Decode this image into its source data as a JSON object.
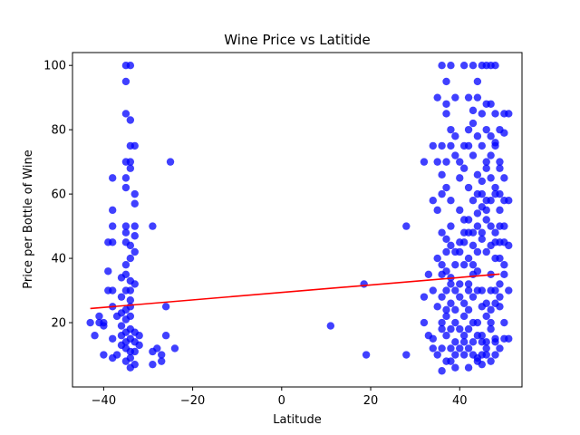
{
  "chart_data": {
    "type": "scatter",
    "title": "Wine Price vs Latitide",
    "xlabel": "Latitude",
    "ylabel": "Price per Bottle of Wine",
    "xlim": [
      -47,
      54
    ],
    "ylim": [
      0,
      104
    ],
    "xticks": [
      -40,
      -20,
      0,
      20,
      40
    ],
    "yticks": [
      20,
      40,
      60,
      80,
      100
    ],
    "grid": false,
    "colors": {
      "points": "#0000ff",
      "regression": "#ff0000"
    },
    "series": [
      {
        "type": "scatter",
        "points": [
          [
            -34,
            100
          ],
          [
            -35,
            100
          ],
          [
            -35,
            95
          ],
          [
            -35,
            85
          ],
          [
            -34,
            83
          ],
          [
            -34,
            75
          ],
          [
            -33,
            75
          ],
          [
            -34,
            70
          ],
          [
            -35,
            70
          ],
          [
            -34,
            68
          ],
          [
            -35,
            65
          ],
          [
            -38,
            65
          ],
          [
            -35,
            62
          ],
          [
            -33,
            60
          ],
          [
            -33,
            57
          ],
          [
            -38,
            55
          ],
          [
            -35,
            50
          ],
          [
            -33,
            50
          ],
          [
            -38,
            50
          ],
          [
            -35,
            48
          ],
          [
            -33,
            47
          ],
          [
            -39,
            45
          ],
          [
            -38,
            45
          ],
          [
            -35,
            45
          ],
          [
            -34,
            44
          ],
          [
            -33,
            42
          ],
          [
            -34,
            40
          ],
          [
            -35,
            38
          ],
          [
            -39,
            36
          ],
          [
            -35,
            35
          ],
          [
            -36,
            34
          ],
          [
            -34,
            33
          ],
          [
            -33,
            32
          ],
          [
            -34,
            30
          ],
          [
            -35,
            30
          ],
          [
            -39,
            30
          ],
          [
            -38,
            30
          ],
          [
            -36,
            28
          ],
          [
            -34,
            27
          ],
          [
            -38,
            25
          ],
          [
            -34,
            25
          ],
          [
            -35,
            24
          ],
          [
            -36,
            23
          ],
          [
            -37,
            22
          ],
          [
            -34,
            22
          ],
          [
            -35,
            21
          ],
          [
            -40,
            20
          ],
          [
            -43,
            20
          ],
          [
            -41,
            20
          ],
          [
            -40,
            19
          ],
          [
            -36,
            19
          ],
          [
            -34,
            18
          ],
          [
            -35,
            17
          ],
          [
            -33,
            17
          ],
          [
            -36,
            16
          ],
          [
            -32,
            16
          ],
          [
            -34,
            15
          ],
          [
            -38,
            15
          ],
          [
            -35,
            14
          ],
          [
            -33,
            14
          ],
          [
            -36,
            13
          ],
          [
            -32,
            13
          ],
          [
            -35,
            12
          ],
          [
            -34,
            11
          ],
          [
            -33,
            11
          ],
          [
            -37,
            10
          ],
          [
            -40,
            10
          ],
          [
            -34,
            9
          ],
          [
            -38,
            9
          ],
          [
            -35,
            8
          ],
          [
            -33,
            7
          ],
          [
            -34,
            6
          ],
          [
            -29,
            50
          ],
          [
            -25,
            70
          ],
          [
            -26,
            25
          ],
          [
            -26,
            16
          ],
          [
            -24,
            12
          ],
          [
            -28,
            12
          ],
          [
            -29,
            11
          ],
          [
            -27,
            10
          ],
          [
            -27,
            8
          ],
          [
            -29,
            7
          ],
          [
            -42,
            16
          ],
          [
            -41,
            22
          ],
          [
            11,
            19
          ],
          [
            18.5,
            32
          ],
          [
            19,
            10
          ],
          [
            28,
            10
          ],
          [
            28,
            50
          ],
          [
            32,
            70
          ],
          [
            32,
            20
          ],
          [
            33,
            35
          ],
          [
            32,
            28
          ],
          [
            33,
            16
          ],
          [
            36,
            100
          ],
          [
            37,
            95
          ],
          [
            38,
            100
          ],
          [
            39,
            90
          ],
          [
            35,
            90
          ],
          [
            37,
            88
          ],
          [
            36,
            75
          ],
          [
            38,
            75
          ],
          [
            34,
            75
          ],
          [
            35,
            70
          ],
          [
            37,
            70
          ],
          [
            39,
            78
          ],
          [
            40,
            65
          ],
          [
            36,
            60
          ],
          [
            34,
            58
          ],
          [
            35,
            55
          ],
          [
            38,
            50
          ],
          [
            36,
            48
          ],
          [
            40,
            45
          ],
          [
            37,
            42
          ],
          [
            35,
            40
          ],
          [
            39,
            38
          ],
          [
            36,
            35
          ],
          [
            38,
            32
          ],
          [
            34,
            30
          ],
          [
            40,
            28
          ],
          [
            35,
            25
          ],
          [
            37,
            22
          ],
          [
            39,
            20
          ],
          [
            36,
            18
          ],
          [
            34,
            15
          ],
          [
            38,
            12
          ],
          [
            35,
            10
          ],
          [
            37,
            8
          ],
          [
            36,
            5
          ],
          [
            39,
            6
          ],
          [
            34,
            12
          ],
          [
            41,
            100
          ],
          [
            43,
            100
          ],
          [
            44,
            95
          ],
          [
            45,
            100
          ],
          [
            46,
            100
          ],
          [
            47,
            100
          ],
          [
            48,
            100
          ],
          [
            42,
            90
          ],
          [
            44,
            90
          ],
          [
            46,
            88
          ],
          [
            47,
            88
          ],
          [
            45,
            85
          ],
          [
            48,
            85
          ],
          [
            50,
            85
          ],
          [
            43,
            82
          ],
          [
            46,
            80
          ],
          [
            49,
            80
          ],
          [
            44,
            78
          ],
          [
            47,
            78
          ],
          [
            50,
            79
          ],
          [
            42,
            75
          ],
          [
            45,
            75
          ],
          [
            48,
            75
          ],
          [
            43,
            72
          ],
          [
            46,
            70
          ],
          [
            49,
            70
          ],
          [
            41,
            68
          ],
          [
            44,
            66
          ],
          [
            47,
            65
          ],
          [
            50,
            65
          ],
          [
            42,
            62
          ],
          [
            45,
            60
          ],
          [
            48,
            60
          ],
          [
            43,
            58
          ],
          [
            46,
            55
          ],
          [
            49,
            55
          ],
          [
            41,
            52
          ],
          [
            44,
            50
          ],
          [
            47,
            50
          ],
          [
            50,
            50
          ],
          [
            42,
            48
          ],
          [
            45,
            46
          ],
          [
            48,
            45
          ],
          [
            43,
            44
          ],
          [
            46,
            42
          ],
          [
            49,
            40
          ],
          [
            41,
            38
          ],
          [
            44,
            36
          ],
          [
            47,
            35
          ],
          [
            50,
            35
          ],
          [
            42,
            32
          ],
          [
            45,
            30
          ],
          [
            48,
            30
          ],
          [
            43,
            28
          ],
          [
            46,
            26
          ],
          [
            49,
            25
          ],
          [
            41,
            22
          ],
          [
            44,
            20
          ],
          [
            47,
            20
          ],
          [
            50,
            20
          ],
          [
            42,
            18
          ],
          [
            45,
            16
          ],
          [
            48,
            15
          ],
          [
            43,
            14
          ],
          [
            46,
            12
          ],
          [
            49,
            12
          ],
          [
            41,
            10
          ],
          [
            44,
            9
          ],
          [
            47,
            8
          ],
          [
            50,
            15
          ],
          [
            42,
            6
          ],
          [
            45,
            7
          ],
          [
            48,
            10
          ],
          [
            40,
            55
          ],
          [
            41,
            45
          ],
          [
            42,
            40
          ],
          [
            43,
            35
          ],
          [
            44,
            30
          ],
          [
            45,
            25
          ],
          [
            46,
            22
          ],
          [
            47,
            18
          ],
          [
            48,
            14
          ],
          [
            49,
            28
          ],
          [
            40,
            32
          ],
          [
            41,
            26
          ],
          [
            42,
            24
          ],
          [
            43,
            20
          ],
          [
            44,
            16
          ],
          [
            45,
            14
          ],
          [
            46,
            10
          ],
          [
            47,
            30
          ],
          [
            48,
            40
          ],
          [
            49,
            45
          ],
          [
            40,
            12
          ],
          [
            41,
            16
          ],
          [
            42,
            30
          ],
          [
            43,
            38
          ],
          [
            44,
            42
          ],
          [
            45,
            48
          ],
          [
            46,
            52
          ],
          [
            47,
            58
          ],
          [
            48,
            62
          ],
          [
            49,
            68
          ],
          [
            38,
            58
          ],
          [
            37,
            62
          ],
          [
            36,
            66
          ],
          [
            38,
            80
          ],
          [
            37,
            85
          ],
          [
            39,
            72
          ],
          [
            40,
            70
          ],
          [
            41,
            75
          ],
          [
            42,
            80
          ],
          [
            43,
            86
          ],
          [
            44,
            60
          ],
          [
            45,
            64
          ],
          [
            46,
            68
          ],
          [
            47,
            72
          ],
          [
            48,
            76
          ],
          [
            49,
            60
          ],
          [
            50,
            58
          ],
          [
            50,
            45
          ],
          [
            51,
            44
          ],
          [
            51,
            58
          ],
          [
            51,
            85
          ],
          [
            51,
            15
          ],
          [
            51,
            30
          ],
          [
            37,
            46
          ],
          [
            38,
            44
          ],
          [
            39,
            42
          ],
          [
            36,
            38
          ],
          [
            37,
            36
          ],
          [
            38,
            26
          ],
          [
            39,
            24
          ],
          [
            36,
            28
          ],
          [
            37,
            30
          ],
          [
            38,
            34
          ],
          [
            39,
            14
          ],
          [
            36,
            12
          ],
          [
            37,
            16
          ],
          [
            38,
            18
          ],
          [
            39,
            10
          ],
          [
            36,
            20
          ],
          [
            37,
            24
          ],
          [
            38,
            8
          ],
          [
            39,
            30
          ],
          [
            40,
            18
          ],
          [
            41,
            14
          ],
          [
            42,
            12
          ],
          [
            43,
            10
          ],
          [
            44,
            8
          ],
          [
            45,
            10
          ],
          [
            46,
            14
          ],
          [
            47,
            24
          ],
          [
            48,
            26
          ],
          [
            49,
            32
          ],
          [
            50,
            38
          ],
          [
            40,
            42
          ],
          [
            41,
            48
          ],
          [
            42,
            52
          ],
          [
            43,
            48
          ],
          [
            44,
            54
          ],
          [
            45,
            56
          ],
          [
            46,
            58
          ],
          [
            47,
            44
          ],
          [
            48,
            48
          ],
          [
            49,
            50
          ]
        ]
      },
      {
        "type": "line",
        "points": [
          [
            -43,
            24.4
          ],
          [
            49,
            35.1
          ]
        ]
      }
    ]
  }
}
